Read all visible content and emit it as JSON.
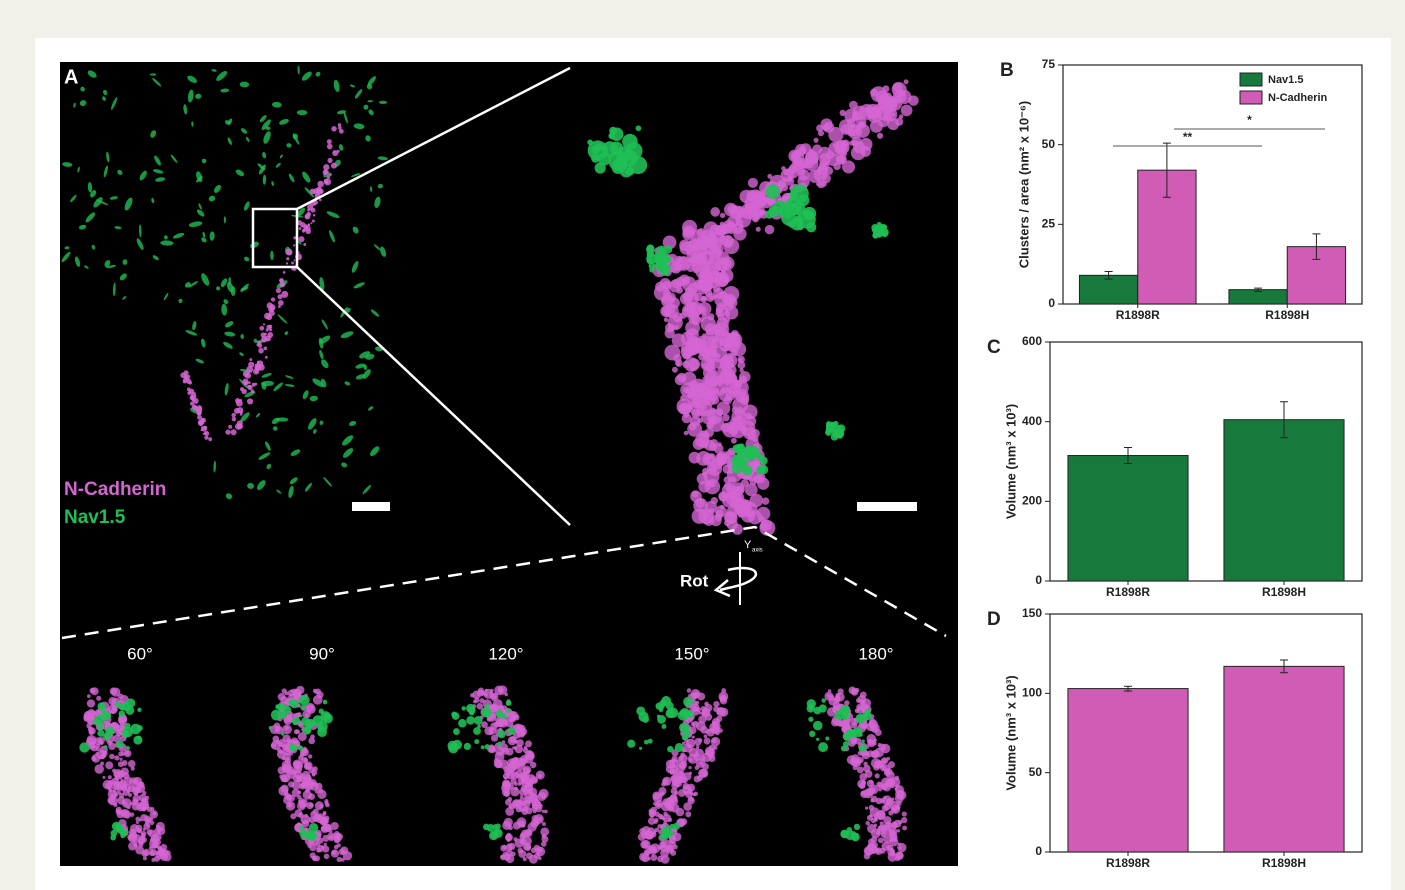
{
  "image_panel": {
    "label": "A",
    "legend": [
      "N-Cadherin",
      "Nav1.5"
    ],
    "rotation_label": "Rot",
    "axis_label": "Y",
    "axis_subscript": "axis",
    "angles": [
      "60°",
      "90°",
      "120°",
      "150°",
      "180°"
    ]
  },
  "chart_data": [
    {
      "type": "bar",
      "panel": "B",
      "ylabel": "Clusters / area (nm² x 10⁻⁶)",
      "categories": [
        "R1898R",
        "R1898H"
      ],
      "series": [
        {
          "name": "Nav1.5",
          "color": "#177a3c",
          "values": [
            9,
            4.5
          ],
          "errors": [
            1.2,
            0.5
          ]
        },
        {
          "name": "N-Cadherin",
          "color": "#d05cb6",
          "values": [
            42,
            18
          ],
          "errors": [
            8.5,
            4
          ]
        }
      ],
      "ylim": [
        0,
        75
      ],
      "yticks": [
        0,
        25,
        50,
        75
      ],
      "legend": "upper right",
      "annotations": [
        "**",
        "*"
      ]
    },
    {
      "type": "bar",
      "panel": "C",
      "ylabel": "Volume (nm³ x 10³)",
      "categories": [
        "R1898R",
        "R1898H"
      ],
      "series": [
        {
          "color": "#177a3c",
          "values": [
            315,
            405
          ],
          "errors": [
            20,
            45
          ]
        }
      ],
      "ylim": [
        0,
        600
      ],
      "yticks": [
        0,
        200,
        400,
        600
      ]
    },
    {
      "type": "bar",
      "panel": "D",
      "ylabel": "Volume (nm³ x 10³)",
      "categories": [
        "R1898R",
        "R1898H"
      ],
      "series": [
        {
          "color": "#d05cb6",
          "values": [
            103,
            117
          ],
          "errors": [
            1.5,
            4
          ]
        }
      ],
      "ylim": [
        0,
        150
      ],
      "yticks": [
        0,
        50,
        100,
        150
      ]
    }
  ]
}
